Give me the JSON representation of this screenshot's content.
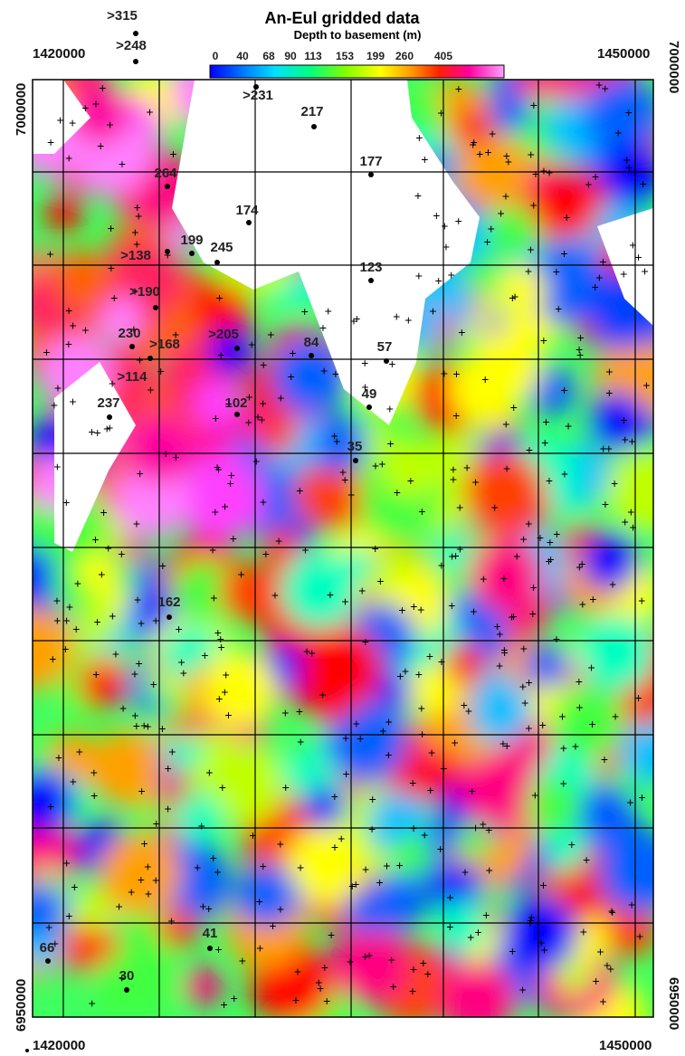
{
  "title": "An-Eul gridded data",
  "subtitle": "Depth to basement (m)",
  "colorbar": {
    "labels": [
      "0",
      "40",
      "68",
      "90",
      "113",
      "153",
      "199",
      "260",
      "405"
    ]
  },
  "coordinates": {
    "x_top_left": "1420000",
    "x_top_right": "1450000",
    "x_bottom_left": "1420000",
    "x_bottom_right": "1450000",
    "y_left_top": "7000000",
    "y_right_top": "7000000",
    "y_left_bottom": "6950000",
    "y_right_bottom": "6950000"
  },
  "points": [
    ">315",
    ">248",
    ">231",
    "217",
    "177",
    "264",
    "174",
    "199",
    "245",
    ">138",
    "123",
    ">190",
    "230",
    ">168",
    ">205",
    "84",
    "57",
    ">114",
    "102",
    "49",
    "237",
    "35",
    "162",
    "41",
    "66",
    "30"
  ]
}
